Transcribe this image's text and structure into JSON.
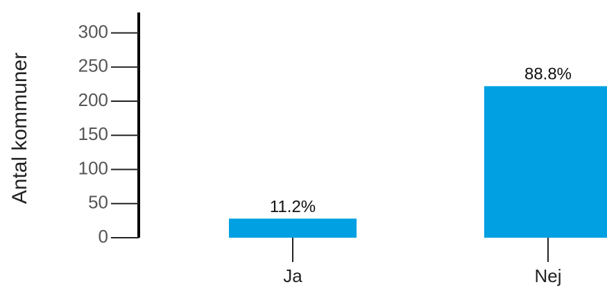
{
  "chart_data": {
    "type": "bar",
    "y_label": "Antal kommuner",
    "categories": [
      "Ja",
      "Nej"
    ],
    "values": [
      28,
      222
    ],
    "value_labels": [
      "11.2%",
      "88.8%"
    ],
    "color": "#00a0e3",
    "ylim": [
      0,
      330
    ],
    "yticks": [
      0,
      50,
      100,
      150,
      200,
      250,
      300
    ],
    "grid": false
  }
}
